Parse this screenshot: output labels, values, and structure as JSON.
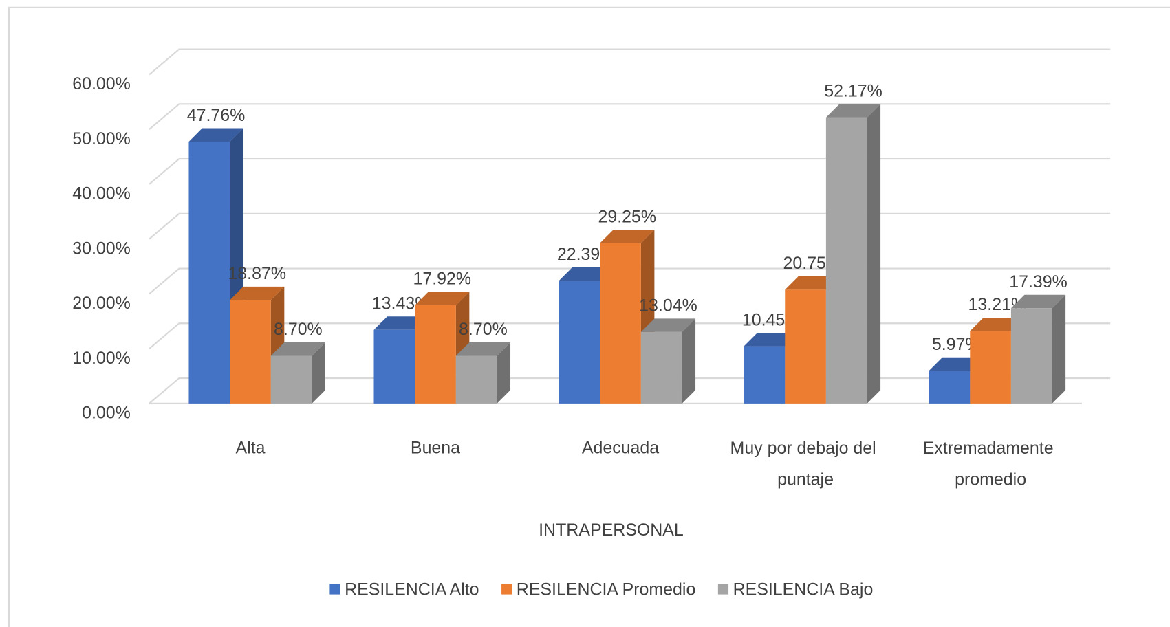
{
  "chart_data": {
    "type": "bar3d",
    "x_label": "INTRAPERSONAL",
    "categories": [
      "Alta",
      "Buena",
      "Adecuada",
      "Muy por debajo del puntaje",
      "Extremadamente promedio"
    ],
    "series": [
      {
        "name": "RESILENCIA Alto",
        "color": "#4472c4",
        "values": [
          47.76,
          13.43,
          22.39,
          10.45,
          5.97
        ],
        "value_labels": [
          "47.76%",
          "13.43%",
          "22.39%",
          "10.45%",
          "5.97%"
        ]
      },
      {
        "name": "RESILENCIA Promedio",
        "color": "#ed7d31",
        "values": [
          18.87,
          17.92,
          29.25,
          20.75,
          13.21
        ],
        "value_labels": [
          "18.87%",
          "17.92%",
          "29.25%",
          "20.75%",
          "13.21%"
        ]
      },
      {
        "name": "RESILENCIA Bajo",
        "color": "#a5a5a5",
        "values": [
          8.7,
          8.7,
          13.04,
          52.17,
          17.39
        ],
        "value_labels": [
          "8.70%",
          "8.70%",
          "13.04%",
          "52.17%",
          "17.39%"
        ]
      }
    ],
    "ylim": [
      0,
      60
    ],
    "yticks": [
      {
        "value": 0,
        "label": "0.00%"
      },
      {
        "value": 10,
        "label": "10.00%"
      },
      {
        "value": 20,
        "label": "20.00%"
      },
      {
        "value": 30,
        "label": "30.00%"
      },
      {
        "value": 40,
        "label": "40.00%"
      },
      {
        "value": 50,
        "label": "50.00%"
      },
      {
        "value": 60,
        "label": "60.00%"
      }
    ],
    "grid": true,
    "legend": "bottom"
  }
}
